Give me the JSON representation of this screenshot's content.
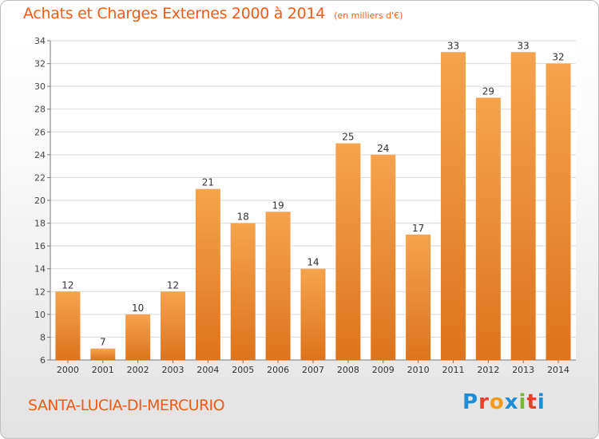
{
  "header": {
    "title": "Achats et Charges Externes 2000 à 2014",
    "subtitle": "(en milliers d'€)"
  },
  "footer": {
    "commune": "SANTA-LUCIA-DI-MERCURIO",
    "brand_letters": [
      "P",
      "r",
      "o",
      "x",
      "i",
      "t",
      "i"
    ],
    "brand_colors": [
      "#1f8dd6",
      "#e8412a",
      "#f29b1d",
      "#1f8dd6",
      "#7cb932",
      "#e8412a",
      "#1f8dd6"
    ]
  },
  "colors": {
    "bar_light": "#f6a34e",
    "bar_dark": "#dd741d",
    "accent": "#ee5c17"
  },
  "chart_data": {
    "type": "bar",
    "title": "Achats et Charges Externes 2000 à 2014",
    "subtitle": "(en milliers d'€)",
    "categories": [
      "2000",
      "2001",
      "2002",
      "2003",
      "2004",
      "2005",
      "2006",
      "2007",
      "2008",
      "2009",
      "2010",
      "2011",
      "2012",
      "2013",
      "2014"
    ],
    "values": [
      12,
      7,
      10,
      12,
      21,
      18,
      19,
      14,
      25,
      24,
      17,
      33,
      29,
      33,
      32
    ],
    "ylim": [
      6,
      34
    ],
    "yticks": [
      6,
      8,
      10,
      12,
      14,
      16,
      18,
      20,
      22,
      24,
      26,
      28,
      30,
      32,
      34
    ],
    "grid": true,
    "data_labels": true
  }
}
